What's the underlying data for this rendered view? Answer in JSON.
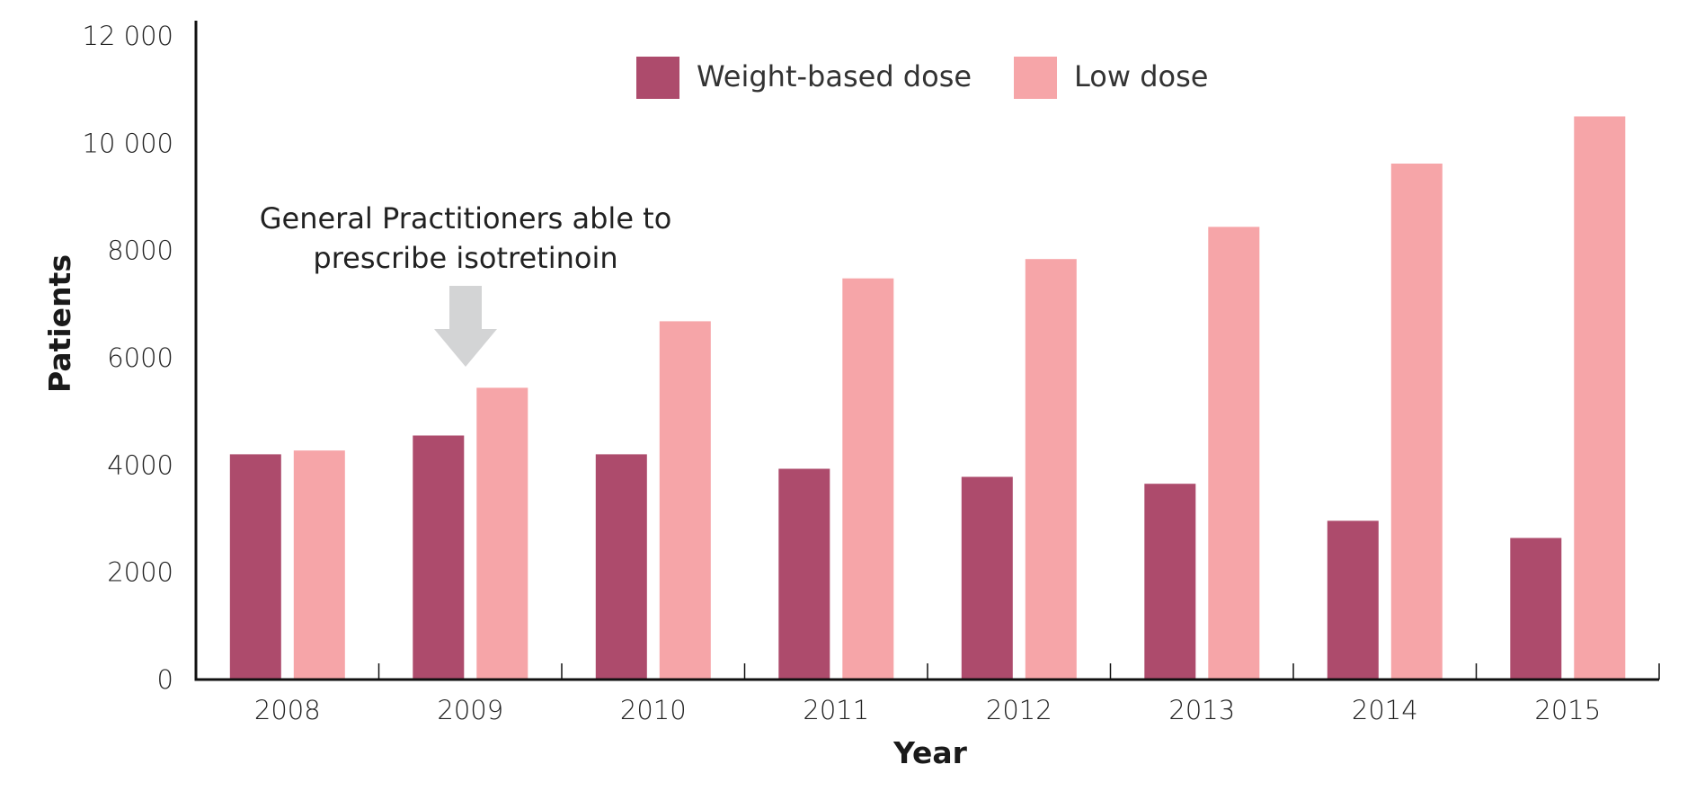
{
  "chart_data": {
    "type": "bar",
    "categories": [
      "2008",
      "2009",
      "2010",
      "2011",
      "2012",
      "2013",
      "2014",
      "2015"
    ],
    "series": [
      {
        "name": "Weight-based dose",
        "color": "#ad4b6c",
        "values": [
          4200,
          4550,
          4200,
          3930,
          3780,
          3650,
          2960,
          2640
        ]
      },
      {
        "name": "Low dose",
        "color": "#f6a5a8",
        "values": [
          4270,
          5440,
          6680,
          7480,
          7840,
          8440,
          9620,
          10500
        ]
      }
    ],
    "yticks": [
      "0",
      "2000",
      "4000",
      "6000",
      "8000",
      "10 000",
      "12 000"
    ],
    "ylim": [
      0,
      12000
    ],
    "xlabel": "Year",
    "ylabel": "Patients",
    "legend_position": "top-center",
    "grid": false,
    "annotation": {
      "lines": [
        "General Practitioners able to",
        "prescribe isotretinoin"
      ],
      "points_to": "2009",
      "arrow_color": "#d3d4d5"
    }
  }
}
